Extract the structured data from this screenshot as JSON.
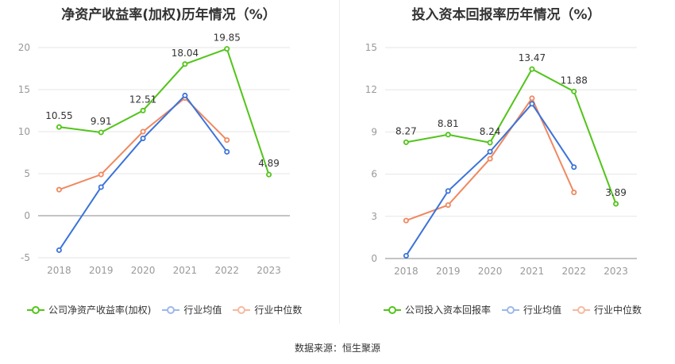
{
  "source_note": "数据来源：恒生聚源",
  "colors": {
    "company": "#52c41a",
    "industry_avg": "#3b73d9",
    "industry_median": "#f08860",
    "grid": "#e6e6e6",
    "axis_text": "#999999"
  },
  "chart_data": [
    {
      "type": "line",
      "title": "净资产收益率(加权)历年情况（%）",
      "categories": [
        "2018",
        "2019",
        "2020",
        "2021",
        "2022",
        "2023"
      ],
      "ylim": [
        -5,
        20
      ],
      "yticks": [
        "-5",
        "0",
        "5",
        "10",
        "15",
        "20"
      ],
      "series": [
        {
          "name": "公司净资产收益率(加权)",
          "key": "company",
          "values": [
            10.55,
            9.91,
            12.51,
            18.04,
            19.85,
            4.89
          ],
          "labels": [
            "10.55",
            "9.91",
            "12.51",
            "18.04",
            "19.85",
            "4.89"
          ]
        },
        {
          "name": "行业均值",
          "key": "industry_avg",
          "values": [
            -4.1,
            3.4,
            9.2,
            14.3,
            7.6,
            null
          ]
        },
        {
          "name": "行业中位数",
          "key": "industry_median",
          "values": [
            3.1,
            4.9,
            10.0,
            14.0,
            9.0,
            null
          ]
        }
      ]
    },
    {
      "type": "line",
      "title": "投入资本回报率历年情况（%）",
      "categories": [
        "2018",
        "2019",
        "2020",
        "2021",
        "2022",
        "2023"
      ],
      "ylim": [
        0,
        15
      ],
      "yticks": [
        "0",
        "3",
        "6",
        "9",
        "12",
        "15"
      ],
      "series": [
        {
          "name": "公司投入资本回报率",
          "key": "company",
          "values": [
            8.27,
            8.81,
            8.24,
            13.47,
            11.88,
            3.89
          ],
          "labels": [
            "8.27",
            "8.81",
            "8.24",
            "13.47",
            "11.88",
            "3.89"
          ]
        },
        {
          "name": "行业均值",
          "key": "industry_avg",
          "values": [
            0.2,
            4.8,
            7.6,
            11.0,
            6.5,
            null
          ]
        },
        {
          "name": "行业中位数",
          "key": "industry_median",
          "values": [
            2.7,
            3.8,
            7.1,
            11.4,
            4.7,
            null
          ]
        }
      ]
    }
  ]
}
